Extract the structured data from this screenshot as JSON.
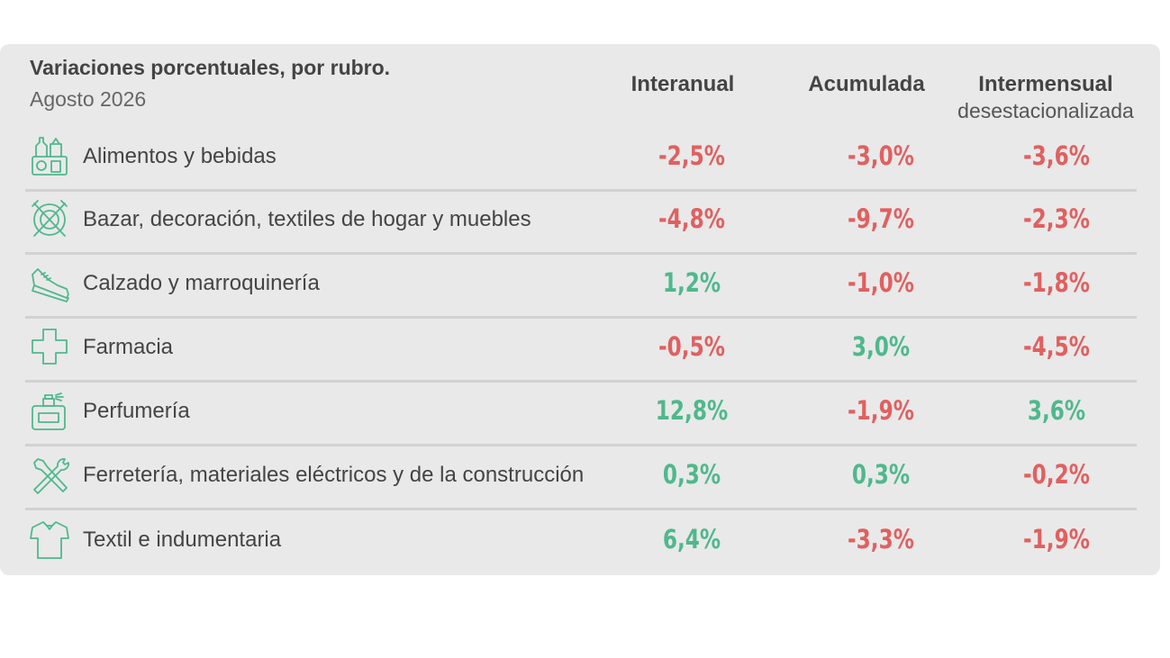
{
  "header": {
    "title": "Variaciones porcentuales, por rubro.",
    "subtitle": "Agosto 2026",
    "col1": "Interanual",
    "col2": "Acumulada",
    "col3": "Intermensual",
    "col3_sub": "desestacionalizada"
  },
  "colors": {
    "negative": "#e06060",
    "positive": "#4fb88c",
    "icon": "#4fb88c"
  },
  "rows": [
    {
      "icon": "groceries-icon",
      "label": "Alimentos y bebidas",
      "interanual": "-2,5%",
      "acumulada": "-3,0%",
      "intermensual": "-3,6%"
    },
    {
      "icon": "plate-cutlery-icon",
      "label": "Bazar, decoración, textiles de hogar y muebles",
      "interanual": "-4,8%",
      "acumulada": "-9,7%",
      "intermensual": "-2,3%"
    },
    {
      "icon": "shoe-icon",
      "label": "Calzado y marroquinería",
      "interanual": "1,2%",
      "acumulada": "-1,0%",
      "intermensual": "-1,8%"
    },
    {
      "icon": "pharmacy-cross-icon",
      "label": "Farmacia",
      "interanual": "-0,5%",
      "acumulada": "3,0%",
      "intermensual": "-4,5%"
    },
    {
      "icon": "perfume-icon",
      "label": "Perfumería",
      "interanual": "12,8%",
      "acumulada": "-1,9%",
      "intermensual": "3,6%"
    },
    {
      "icon": "tools-icon",
      "label": "Ferretería, materiales eléctricos y de la construcción",
      "interanual": "0,3%",
      "acumulada": "0,3%",
      "intermensual": "-0,2%"
    },
    {
      "icon": "shirt-icon",
      "label": "Textil e indumentaria",
      "interanual": "6,4%",
      "acumulada": "-3,3%",
      "intermensual": "-1,9%"
    }
  ]
}
